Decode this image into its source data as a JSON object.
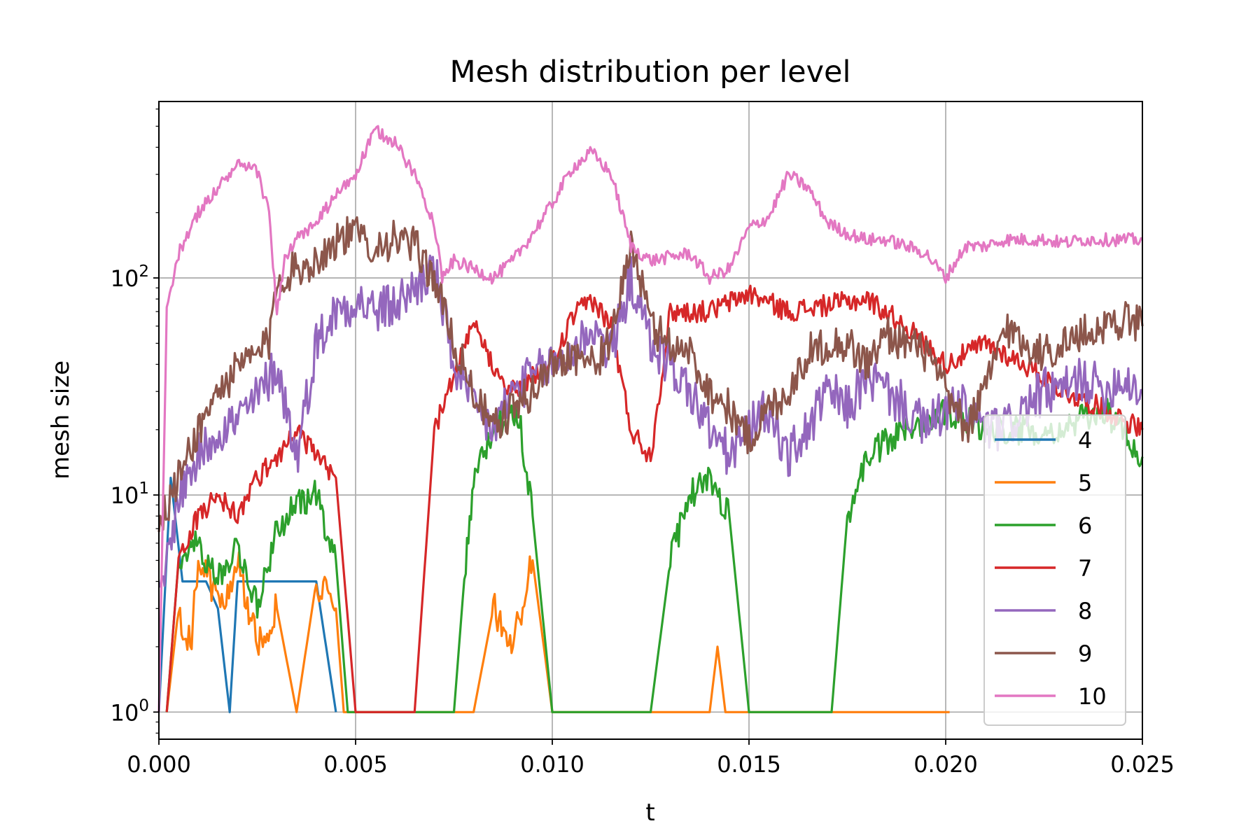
{
  "chart_data": {
    "type": "line",
    "title": "Mesh distribution per level",
    "xlabel": "t",
    "ylabel": "mesh size",
    "xlim": [
      0.0,
      0.025
    ],
    "ylim": [
      0.75,
      650
    ],
    "yscale": "log",
    "grid": true,
    "legend_position": "lower-right",
    "x_ticks": [
      "0.000",
      "0.005",
      "0.010",
      "0.015",
      "0.020",
      "0.025"
    ],
    "x_tick_values": [
      0.0,
      0.005,
      0.01,
      0.015,
      0.02,
      0.025
    ],
    "y_ticks": [
      {
        "value": 1,
        "base": "10",
        "exp": "0"
      },
      {
        "value": 10,
        "base": "10",
        "exp": "1"
      },
      {
        "value": 100,
        "base": "10",
        "exp": "2"
      }
    ],
    "series": [
      {
        "name": "4",
        "color": "#1f77b4",
        "x": [
          0.0,
          0.0003,
          0.0006,
          0.0012,
          0.0015,
          0.0018,
          0.002,
          0.0025,
          0.003,
          0.0035,
          0.004,
          0.0045
        ],
        "y": [
          1,
          12,
          4,
          4,
          3,
          1,
          4,
          4,
          4,
          4,
          4,
          1
        ]
      },
      {
        "name": "5",
        "color": "#ff7f0e",
        "x": [
          0.0002,
          0.0005,
          0.0008,
          0.001,
          0.0013,
          0.0016,
          0.002,
          0.0025,
          0.003,
          0.0035,
          0.004,
          0.0045,
          0.0047,
          0.008,
          0.0085,
          0.009,
          0.0095,
          0.01,
          0.014,
          0.0142,
          0.0144,
          0.02,
          0.0201
        ],
        "y": [
          1,
          3,
          2,
          5,
          4,
          3,
          5,
          2,
          3,
          1,
          4,
          3,
          1,
          1,
          3,
          2,
          5,
          1,
          1,
          2,
          1,
          1,
          1
        ]
      },
      {
        "name": "6",
        "color": "#2ca02c",
        "x": [
          0.0002,
          0.0005,
          0.001,
          0.0015,
          0.002,
          0.0025,
          0.003,
          0.0035,
          0.004,
          0.0045,
          0.0048,
          0.0075,
          0.0078,
          0.008,
          0.0085,
          0.009,
          0.0092,
          0.0095,
          0.01,
          0.0125,
          0.013,
          0.0135,
          0.014,
          0.0145,
          0.015,
          0.0171,
          0.0175,
          0.018,
          0.019,
          0.02,
          0.021,
          0.022,
          0.023,
          0.024,
          0.025
        ],
        "y": [
          1,
          5,
          6,
          4,
          6,
          3,
          7,
          9,
          10,
          5,
          1,
          1,
          5,
          12,
          20,
          25,
          20,
          8,
          1,
          1,
          5,
          10,
          12,
          8,
          1,
          1,
          8,
          15,
          20,
          25,
          20,
          20,
          20,
          25,
          15
        ]
      },
      {
        "name": "7",
        "color": "#d62728",
        "x": [
          0.0002,
          0.0005,
          0.001,
          0.0015,
          0.002,
          0.0025,
          0.003,
          0.0035,
          0.004,
          0.0045,
          0.005,
          0.0055,
          0.0065,
          0.007,
          0.0075,
          0.008,
          0.0085,
          0.009,
          0.01,
          0.0105,
          0.011,
          0.0115,
          0.012,
          0.0125,
          0.013,
          0.014,
          0.015,
          0.016,
          0.017,
          0.018,
          0.019,
          0.02,
          0.021,
          0.022,
          0.023,
          0.024,
          0.025
        ],
        "y": [
          1,
          5,
          8,
          10,
          8,
          12,
          15,
          20,
          15,
          12,
          1,
          1,
          1,
          20,
          35,
          60,
          40,
          30,
          40,
          65,
          80,
          60,
          20,
          15,
          70,
          70,
          85,
          70,
          75,
          80,
          60,
          40,
          50,
          40,
          30,
          25,
          20
        ]
      },
      {
        "name": "8",
        "color": "#9467bd",
        "x": [
          0.0,
          0.0005,
          0.001,
          0.0015,
          0.002,
          0.0025,
          0.003,
          0.0035,
          0.004,
          0.0045,
          0.005,
          0.0055,
          0.006,
          0.0065,
          0.007,
          0.0075,
          0.008,
          0.0085,
          0.009,
          0.0095,
          0.01,
          0.0105,
          0.011,
          0.0115,
          0.012,
          0.0125,
          0.013,
          0.0135,
          0.014,
          0.0145,
          0.015,
          0.0155,
          0.016,
          0.0165,
          0.017,
          0.0175,
          0.018,
          0.0185,
          0.019,
          0.0195,
          0.02,
          0.0205,
          0.021,
          0.0215,
          0.022,
          0.0225,
          0.023,
          0.0235,
          0.024,
          0.0245,
          0.025
        ],
        "y": [
          3,
          10,
          15,
          20,
          22,
          28,
          40,
          15,
          50,
          70,
          80,
          70,
          75,
          90,
          110,
          40,
          25,
          20,
          30,
          35,
          40,
          45,
          60,
          45,
          100,
          50,
          40,
          30,
          20,
          15,
          20,
          25,
          15,
          20,
          30,
          25,
          35,
          30,
          25,
          20,
          25,
          25,
          20,
          20,
          25,
          30,
          30,
          35,
          30,
          35,
          30
        ]
      },
      {
        "name": "9",
        "color": "#8c564b",
        "x": [
          0.0,
          0.0005,
          0.001,
          0.0015,
          0.002,
          0.0025,
          0.0028,
          0.003,
          0.0035,
          0.004,
          0.0045,
          0.005,
          0.0055,
          0.006,
          0.0065,
          0.007,
          0.0075,
          0.008,
          0.0085,
          0.009,
          0.0095,
          0.01,
          0.0105,
          0.011,
          0.0115,
          0.012,
          0.0125,
          0.013,
          0.0135,
          0.014,
          0.0145,
          0.015,
          0.0155,
          0.016,
          0.0165,
          0.017,
          0.0175,
          0.018,
          0.0185,
          0.019,
          0.0195,
          0.02,
          0.0205,
          0.021,
          0.0215,
          0.022,
          0.0225,
          0.023,
          0.0235,
          0.024,
          0.0245,
          0.025
        ],
        "y": [
          7,
          12,
          20,
          30,
          38,
          45,
          50,
          100,
          110,
          120,
          150,
          160,
          140,
          150,
          140,
          100,
          50,
          30,
          20,
          25,
          30,
          40,
          45,
          40,
          50,
          150,
          60,
          50,
          45,
          30,
          25,
          18,
          25,
          30,
          45,
          50,
          50,
          40,
          55,
          50,
          45,
          30,
          20,
          30,
          60,
          50,
          45,
          50,
          55,
          60,
          65,
          60
        ]
      },
      {
        "name": "10",
        "color": "#e377c2",
        "x": [
          0.0,
          0.0002,
          0.0005,
          0.001,
          0.0015,
          0.002,
          0.0025,
          0.0028,
          0.003,
          0.0032,
          0.0035,
          0.004,
          0.0045,
          0.005,
          0.0055,
          0.006,
          0.0065,
          0.007,
          0.0072,
          0.0075,
          0.008,
          0.0085,
          0.009,
          0.0095,
          0.01,
          0.0105,
          0.011,
          0.0115,
          0.012,
          0.0125,
          0.013,
          0.0135,
          0.014,
          0.0145,
          0.015,
          0.0155,
          0.016,
          0.0165,
          0.017,
          0.0175,
          0.018,
          0.0185,
          0.019,
          0.0195,
          0.02,
          0.0205,
          0.021,
          0.0215,
          0.022,
          0.0225,
          0.023,
          0.0235,
          0.024,
          0.0245,
          0.025
        ],
        "y": [
          1,
          70,
          130,
          200,
          260,
          330,
          310,
          200,
          70,
          120,
          150,
          180,
          240,
          300,
          480,
          420,
          300,
          180,
          100,
          120,
          110,
          100,
          120,
          160,
          220,
          320,
          380,
          300,
          140,
          120,
          125,
          130,
          100,
          110,
          170,
          190,
          300,
          260,
          180,
          160,
          150,
          150,
          140,
          130,
          100,
          140,
          140,
          150,
          150,
          150,
          145,
          150,
          150,
          150,
          150
        ]
      }
    ]
  }
}
